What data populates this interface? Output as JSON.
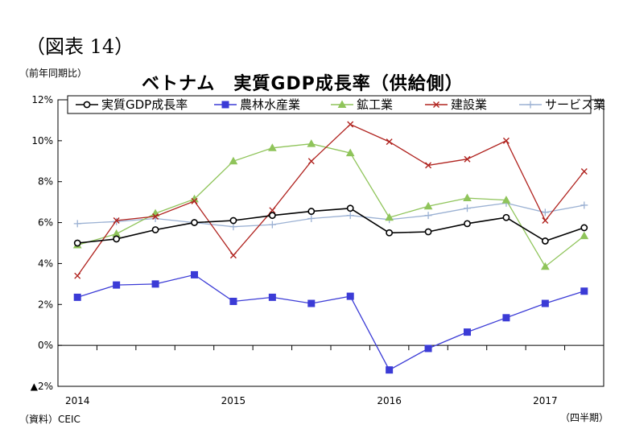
{
  "figure_label": "（図表 14）",
  "y_unit": "（前年同期比）",
  "source": "（資料）CEIC",
  "x_unit": "（四半期）",
  "chart_data": {
    "type": "line",
    "title": "ベトナム　実質GDP成長率（供給側）",
    "xlabel": "",
    "ylabel": "",
    "ylim": [
      -2,
      12
    ],
    "y_ticks": [
      {
        "value": 12,
        "label": "12%"
      },
      {
        "value": 10,
        "label": "10%"
      },
      {
        "value": 8,
        "label": "8%"
      },
      {
        "value": 6,
        "label": "6%"
      },
      {
        "value": 4,
        "label": "4%"
      },
      {
        "value": 2,
        "label": "2%"
      },
      {
        "value": 0,
        "label": "0%"
      },
      {
        "value": -2,
        "label": "▲2%"
      }
    ],
    "x_ticks": [
      {
        "index": 0,
        "label": "2014"
      },
      {
        "index": 4,
        "label": "2015"
      },
      {
        "index": 8,
        "label": "2016"
      },
      {
        "index": 12,
        "label": "2017"
      }
    ],
    "categories": [
      "2014Q1",
      "2014Q2",
      "2014Q3",
      "2014Q4",
      "2015Q1",
      "2015Q2",
      "2015Q3",
      "2015Q4",
      "2016Q1",
      "2016Q2",
      "2016Q3",
      "2016Q4",
      "2017Q1",
      "2017Q2"
    ],
    "legend_position": "top",
    "grid": false,
    "series": [
      {
        "name": "実質GDP成長率",
        "color": "#000000",
        "marker": "circle",
        "values": [
          5.0,
          5.2,
          5.65,
          6.0,
          6.1,
          6.35,
          6.55,
          6.7,
          5.5,
          5.55,
          5.95,
          6.25,
          5.1,
          5.75
        ]
      },
      {
        "name": "農林水産業",
        "color": "#3b3bd6",
        "marker": "square",
        "values": [
          2.35,
          2.95,
          3.0,
          3.45,
          2.15,
          2.35,
          2.05,
          2.4,
          -1.2,
          -0.15,
          0.65,
          1.35,
          2.05,
          2.65
        ]
      },
      {
        "name": "鉱工業",
        "color": "#8fc45a",
        "marker": "triangle",
        "values": [
          4.9,
          5.45,
          6.45,
          7.15,
          9.0,
          9.65,
          9.85,
          9.4,
          6.25,
          6.8,
          7.2,
          7.1,
          3.85,
          5.35
        ]
      },
      {
        "name": "建設業",
        "color": "#b0231f",
        "marker": "cross",
        "values": [
          3.4,
          6.1,
          6.3,
          7.05,
          4.4,
          6.6,
          9.0,
          10.8,
          9.95,
          8.8,
          9.1,
          10.0,
          6.1,
          8.5
        ]
      },
      {
        "name": "サービス業",
        "color": "#9bb1d3",
        "marker": "plus",
        "values": [
          5.95,
          6.05,
          6.2,
          6.0,
          5.8,
          5.9,
          6.2,
          6.35,
          6.15,
          6.35,
          6.7,
          6.95,
          6.5,
          6.85
        ]
      }
    ]
  }
}
